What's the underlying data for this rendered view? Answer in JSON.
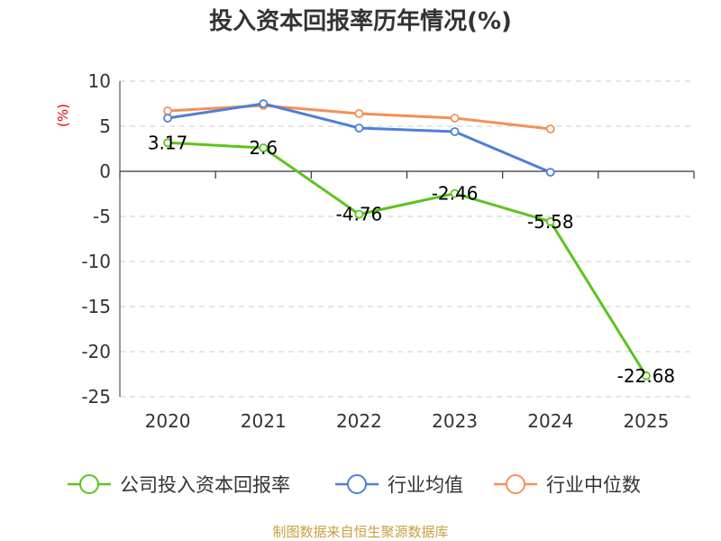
{
  "chart_data": {
    "type": "line",
    "title": "投入资本回报率历年情况(%)",
    "ylabel": "(%)",
    "categories": [
      "2020",
      "2021",
      "2022",
      "2023",
      "2024",
      "2025"
    ],
    "ylim": [
      -25,
      10
    ],
    "yticks": [
      10,
      5,
      0,
      -5,
      -10,
      -15,
      -20,
      -25
    ],
    "grid": true,
    "legend_position": "bottom",
    "series": [
      {
        "name": "公司投入资本回报率",
        "color": "#5cc41f",
        "values": [
          3.17,
          2.6,
          -4.76,
          -2.46,
          -5.58,
          -22.68
        ],
        "labels": [
          "3.17",
          "2.6",
          "-4.76",
          "-2.46",
          "-5.58",
          "-22.68"
        ]
      },
      {
        "name": "行业均值",
        "color": "#4e7fd8",
        "values": [
          5.9,
          7.5,
          4.8,
          4.4,
          -0.1,
          null
        ]
      },
      {
        "name": "行业中位数",
        "color": "#f58f58",
        "values": [
          6.7,
          7.3,
          6.4,
          5.9,
          4.7,
          null
        ]
      }
    ]
  },
  "source": "制图数据来自恒生聚源数据库"
}
